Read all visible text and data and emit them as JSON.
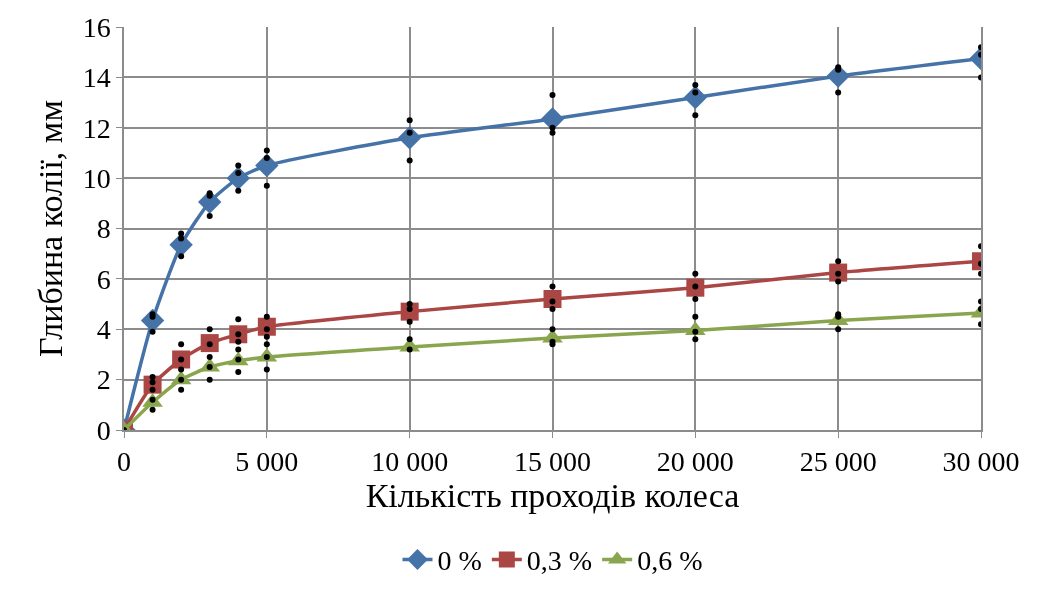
{
  "chart_data": {
    "type": "line",
    "xlabel": "Кількість проходів колеса",
    "ylabel": "Глибина колії, мм",
    "x": [
      0,
      1000,
      2000,
      3000,
      4000,
      5000,
      10000,
      15000,
      20000,
      25000,
      30000
    ],
    "xlim": [
      0,
      30000
    ],
    "xticks": [
      0,
      {
        "value": 5000,
        "label": "5 000"
      },
      {
        "value": 10000,
        "label": "10 000"
      },
      {
        "value": 15000,
        "label": "15 000"
      },
      {
        "value": 20000,
        "label": "20 000"
      },
      {
        "value": 25000,
        "label": "25 000"
      },
      {
        "value": 30000,
        "label": "30 000"
      }
    ],
    "ylim": [
      0,
      16
    ],
    "yticks": [
      0,
      2,
      4,
      6,
      8,
      10,
      12,
      14,
      16
    ],
    "grid": true,
    "legend": "bottom",
    "line_style": "solid",
    "series": [
      {
        "name": "0 %",
        "color": "#4572a7",
        "marker": "diamond",
        "values": [
          0,
          4.35,
          7.35,
          9.05,
          10.0,
          10.5,
          11.6,
          12.35,
          13.2,
          14.05,
          14.75
        ]
      },
      {
        "name": "0,3 %",
        "color": "#aa4643",
        "marker": "square",
        "values": [
          0,
          1.8,
          2.8,
          3.45,
          3.8,
          4.1,
          4.7,
          5.2,
          5.65,
          6.25,
          6.7
        ]
      },
      {
        "name": "0,6 %",
        "color": "#89a54e",
        "marker": "triangle",
        "values": [
          0,
          1.1,
          2.0,
          2.5,
          2.75,
          2.9,
          3.3,
          3.65,
          3.95,
          4.35,
          4.65
        ]
      },
      {
        "type": "scatter",
        "color": "#000000",
        "marker": "circle",
        "x": [
          0,
          1000,
          1000,
          1000,
          1000,
          1000,
          1000,
          1000,
          1000,
          2000,
          2000,
          2000,
          2000,
          2000,
          2000,
          2000,
          2000,
          3000,
          3000,
          3000,
          3000,
          3000,
          3000,
          3000,
          3000,
          4000,
          4000,
          4000,
          4000,
          4000,
          4000,
          4000,
          4000,
          4000,
          5000,
          5000,
          5000,
          5000,
          5000,
          5000,
          5000,
          5000,
          5000,
          10000,
          10000,
          10000,
          10000,
          10000,
          10000,
          10000,
          10000,
          15000,
          15000,
          15000,
          15000,
          15000,
          15000,
          15000,
          15000,
          15000,
          20000,
          20000,
          20000,
          20000,
          20000,
          20000,
          20000,
          20000,
          20000,
          25000,
          25000,
          25000,
          25000,
          25000,
          25000,
          25000,
          25000,
          25000,
          30000,
          30000,
          30000,
          30000,
          30000,
          30000,
          30000,
          30000,
          30000
        ],
        "values": [
          0,
          4.6,
          4.5,
          3.9,
          2.1,
          1.9,
          1.6,
          1.2,
          0.8,
          7.8,
          7.6,
          6.9,
          3.4,
          2.8,
          2.4,
          2.0,
          1.6,
          9.4,
          9.3,
          8.5,
          4.0,
          3.4,
          2.9,
          2.5,
          2.0,
          10.5,
          10.2,
          9.5,
          4.4,
          3.8,
          3.5,
          3.2,
          2.8,
          2.3,
          11.1,
          10.8,
          9.7,
          4.5,
          4.0,
          3.7,
          3.4,
          2.9,
          2.4,
          12.3,
          11.8,
          10.7,
          5.0,
          4.8,
          4.3,
          3.6,
          3.2,
          13.3,
          12.0,
          11.8,
          5.7,
          5.1,
          4.8,
          4.0,
          3.5,
          3.4,
          13.7,
          13.4,
          12.5,
          6.2,
          5.7,
          5.2,
          4.5,
          3.9,
          3.6,
          14.4,
          14.3,
          13.4,
          6.7,
          6.2,
          5.9,
          4.6,
          4.5,
          4.0,
          15.2,
          14.9,
          14.0,
          7.3,
          6.6,
          6.2,
          5.1,
          4.8,
          4.2
        ]
      }
    ]
  }
}
